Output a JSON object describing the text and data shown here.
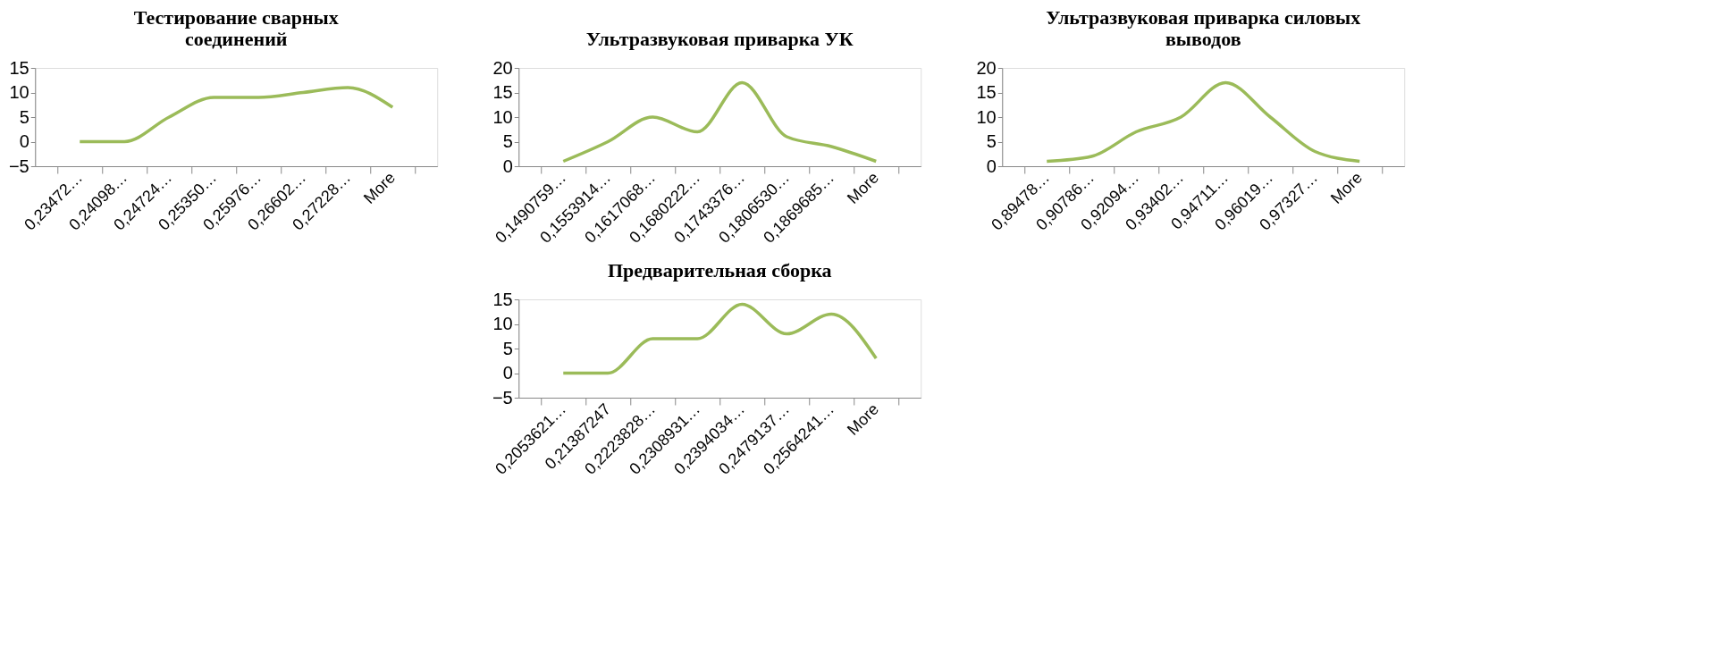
{
  "chart_data": [
    {
      "type": "line",
      "title": "Тестирование сварных\nсоединений",
      "categories": [
        "0,23472…",
        "0,24098…",
        "0,24724…",
        "0,25350…",
        "0,25976…",
        "0,26602…",
        "0,27228…",
        "More"
      ],
      "values": [
        0,
        0,
        5,
        9,
        9,
        10,
        11,
        7
      ],
      "color": "#9bbb59",
      "ylim": [
        -5,
        15
      ],
      "yticks": [
        -5,
        0,
        5,
        10,
        15
      ],
      "grid": false
    },
    {
      "type": "line",
      "title": "Ультразвуковая приварка УК",
      "categories": [
        "0,1490759…",
        "0,1553914…",
        "0,1617068…",
        "0,1680222…",
        "0,1743376…",
        "0,1806530…",
        "0,1869685…",
        "More"
      ],
      "values": [
        1,
        5,
        10,
        7,
        17,
        6,
        4,
        1
      ],
      "color": "#9bbb59",
      "ylim": [
        0,
        20
      ],
      "yticks": [
        0,
        5,
        10,
        15,
        20
      ],
      "grid": false
    },
    {
      "type": "line",
      "title": "Ультразвуковая приварка силовых\nвыводов",
      "categories": [
        "0,89478…",
        "0,90786…",
        "0,92094…",
        "0,93402…",
        "0,94711…",
        "0,96019…",
        "0,97327…",
        "More"
      ],
      "values": [
        1,
        2,
        7,
        10,
        17,
        10,
        3,
        1
      ],
      "color": "#9bbb59",
      "ylim": [
        0,
        20
      ],
      "yticks": [
        0,
        5,
        10,
        15,
        20
      ],
      "grid": false
    },
    {
      "type": "line",
      "title": "Предварительная сборка",
      "categories": [
        "0,2053621…",
        "0,21387247",
        "0,2223828…",
        "0,2308931…",
        "0,2394034…",
        "0,2479137…",
        "0,2564241…",
        "More"
      ],
      "values": [
        0,
        0,
        7,
        7,
        14,
        8,
        12,
        3
      ],
      "color": "#9bbb59",
      "ylim": [
        -5,
        15
      ],
      "yticks": [
        -5,
        0,
        5,
        10,
        15
      ],
      "grid": false
    }
  ]
}
